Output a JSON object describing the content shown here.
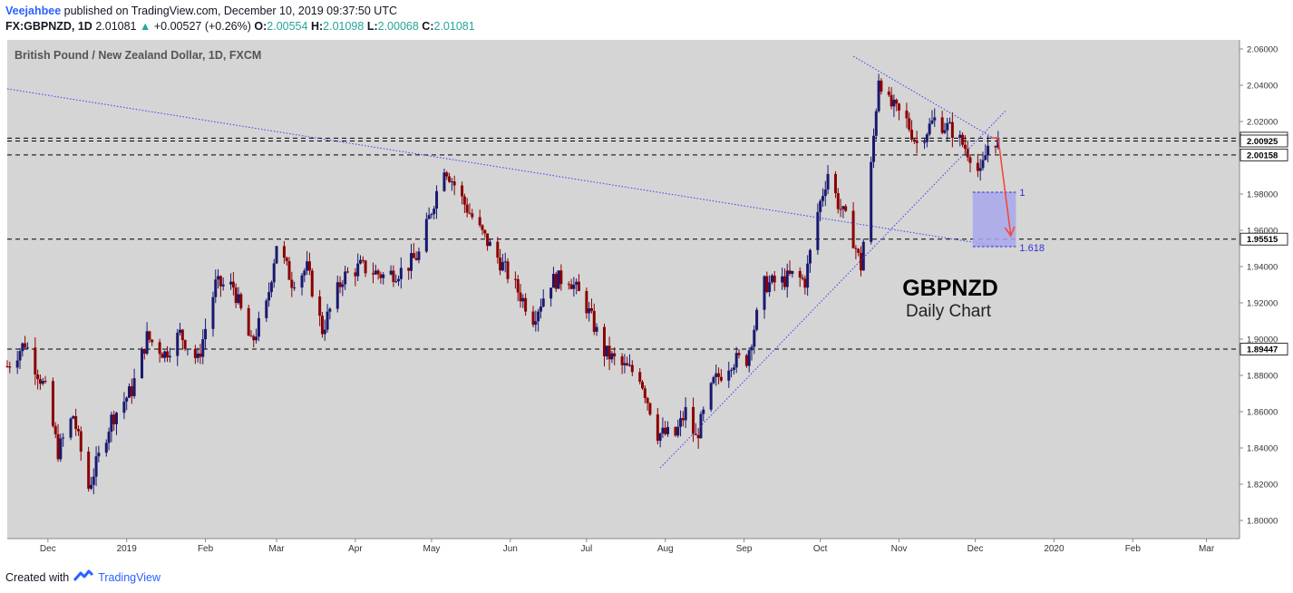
{
  "header": {
    "author": "Veejahbee",
    "published_text": "published on TradingView.com, December 10, 2019 09:37:50 UTC",
    "symbol": "FX:GBPNZD, 1D",
    "last": "2.01081",
    "change": "+0.00527 (+0.26%)",
    "open_label": "O:",
    "open": "2.00554",
    "high_label": "H:",
    "high": "2.01098",
    "low_label": "L:",
    "low": "2.00068",
    "close_label": "C:",
    "close": "2.01081"
  },
  "footer": {
    "created_with": "Created with",
    "brand": "TradingView"
  },
  "colors": {
    "plot_bg": "#d5d5d5",
    "bull": "#191970",
    "bear": "#8b0000",
    "trendline": "#3f3ff5",
    "arrow": "#f04a3a",
    "fib_fill": "#a9a7ec"
  },
  "chart_data": {
    "type": "candlestick",
    "title": "British Pound / New Zealand Dollar, 1D, FXCM",
    "annotation_title": "GBPNZD",
    "annotation_subtitle": "Daily Chart",
    "ylim": [
      1.79,
      2.065
    ],
    "y_ticks": [
      "1.80000",
      "1.82000",
      "1.84000",
      "1.86000",
      "1.88000",
      "1.90000",
      "1.92000",
      "1.94000",
      "1.96000",
      "1.98000",
      "2.00000",
      "2.02000",
      "2.04000",
      "2.06000"
    ],
    "x_ticks": [
      "Dec",
      "2019",
      "Feb",
      "Mar",
      "Apr",
      "May",
      "Jun",
      "Jul",
      "Aug",
      "Sep",
      "Oct",
      "Nov",
      "Dec",
      "2020",
      "Feb",
      "Mar"
    ],
    "x_tick_dates": [
      "2018-12-01",
      "2019-01-01",
      "2019-02-01",
      "2019-03-01",
      "2019-04-01",
      "2019-05-01",
      "2019-06-01",
      "2019-07-01",
      "2019-08-01",
      "2019-09-01",
      "2019-10-01",
      "2019-11-01",
      "2019-12-01",
      "2020-01-01",
      "2020-02-01",
      "2020-03-01"
    ],
    "x_range": [
      "2018-11-15",
      "2020-03-14"
    ],
    "horizontal_levels": [
      {
        "value": 2.01081,
        "label": "2.01081"
      },
      {
        "value": 2.00925,
        "label": "2.00925"
      },
      {
        "value": 2.00158,
        "label": "2.00158"
      },
      {
        "value": 1.95515,
        "label": "1.95515"
      },
      {
        "value": 1.89447,
        "label": "1.89447"
      }
    ],
    "trendlines": [
      {
        "from": [
          "2018-11-15",
          2.038
        ],
        "to": [
          "2019-12-11",
          1.951
        ]
      },
      {
        "from": [
          "2019-10-14",
          2.056
        ],
        "to": [
          "2019-12-08",
          2.011
        ]
      },
      {
        "from": [
          "2019-07-30",
          1.829
        ],
        "to": [
          "2019-12-13",
          2.026
        ]
      }
    ],
    "fib_box": {
      "start": "2019-11-30",
      "end": "2019-12-17",
      "level_1": 1.981,
      "level_1618": 1.951,
      "label_1": "1",
      "label_1618": "1.618"
    },
    "projection_arrow": {
      "from": [
        "2019-12-10",
        2.011
      ],
      "to": [
        "2019-12-15",
        1.957
      ]
    },
    "anchors": [
      [
        "2018-11-15",
        1.885
      ],
      [
        "2018-11-22",
        1.898
      ],
      [
        "2018-11-30",
        1.872
      ],
      [
        "2018-12-05",
        1.838
      ],
      [
        "2018-12-11",
        1.858
      ],
      [
        "2018-12-17",
        1.818
      ],
      [
        "2018-12-26",
        1.856
      ],
      [
        "2019-01-03",
        1.872
      ],
      [
        "2019-01-09",
        1.901
      ],
      [
        "2019-01-16",
        1.892
      ],
      [
        "2019-01-22",
        1.903
      ],
      [
        "2019-01-29",
        1.888
      ],
      [
        "2019-02-05",
        1.93
      ],
      [
        "2019-02-12",
        1.929
      ],
      [
        "2019-02-19",
        1.897
      ],
      [
        "2019-02-25",
        1.918
      ],
      [
        "2019-03-01",
        1.953
      ],
      [
        "2019-03-07",
        1.932
      ],
      [
        "2019-03-13",
        1.939
      ],
      [
        "2019-03-19",
        1.905
      ],
      [
        "2019-03-27",
        1.934
      ],
      [
        "2019-04-03",
        1.94
      ],
      [
        "2019-04-12",
        1.935
      ],
      [
        "2019-04-20",
        1.938
      ],
      [
        "2019-04-26",
        1.947
      ],
      [
        "2019-05-06",
        1.996
      ],
      [
        "2019-05-13",
        1.977
      ],
      [
        "2019-05-20",
        1.96
      ],
      [
        "2019-05-27",
        1.945
      ],
      [
        "2019-06-03",
        1.929
      ],
      [
        "2019-06-10",
        1.912
      ],
      [
        "2019-06-17",
        1.932
      ],
      [
        "2019-06-24",
        1.934
      ],
      [
        "2019-07-01",
        1.918
      ],
      [
        "2019-07-08",
        1.893
      ],
      [
        "2019-07-15",
        1.885
      ],
      [
        "2019-07-22",
        1.88
      ],
      [
        "2019-07-29",
        1.848
      ],
      [
        "2019-08-05",
        1.847
      ],
      [
        "2019-08-09",
        1.86
      ],
      [
        "2019-08-13",
        1.845
      ],
      [
        "2019-08-20",
        1.876
      ],
      [
        "2019-08-27",
        1.888
      ],
      [
        "2019-09-02",
        1.889
      ],
      [
        "2019-09-09",
        1.93
      ],
      [
        "2019-09-16",
        1.932
      ],
      [
        "2019-09-20",
        1.935
      ],
      [
        "2019-09-25",
        1.932
      ],
      [
        "2019-09-30",
        1.97
      ],
      [
        "2019-10-04",
        1.992
      ],
      [
        "2019-10-08",
        1.975
      ],
      [
        "2019-10-13",
        1.96
      ],
      [
        "2019-10-17",
        1.94
      ],
      [
        "2019-10-21",
        1.995
      ],
      [
        "2019-10-24",
        2.045
      ],
      [
        "2019-10-28",
        2.03
      ],
      [
        "2019-11-04",
        2.02
      ],
      [
        "2019-11-08",
        2.008
      ],
      [
        "2019-11-15",
        2.021
      ],
      [
        "2019-11-22",
        2.015
      ],
      [
        "2019-11-29",
        2.002
      ],
      [
        "2019-12-03",
        1.99
      ],
      [
        "2019-12-06",
        2.007
      ],
      [
        "2019-12-10",
        2.011
      ]
    ]
  }
}
